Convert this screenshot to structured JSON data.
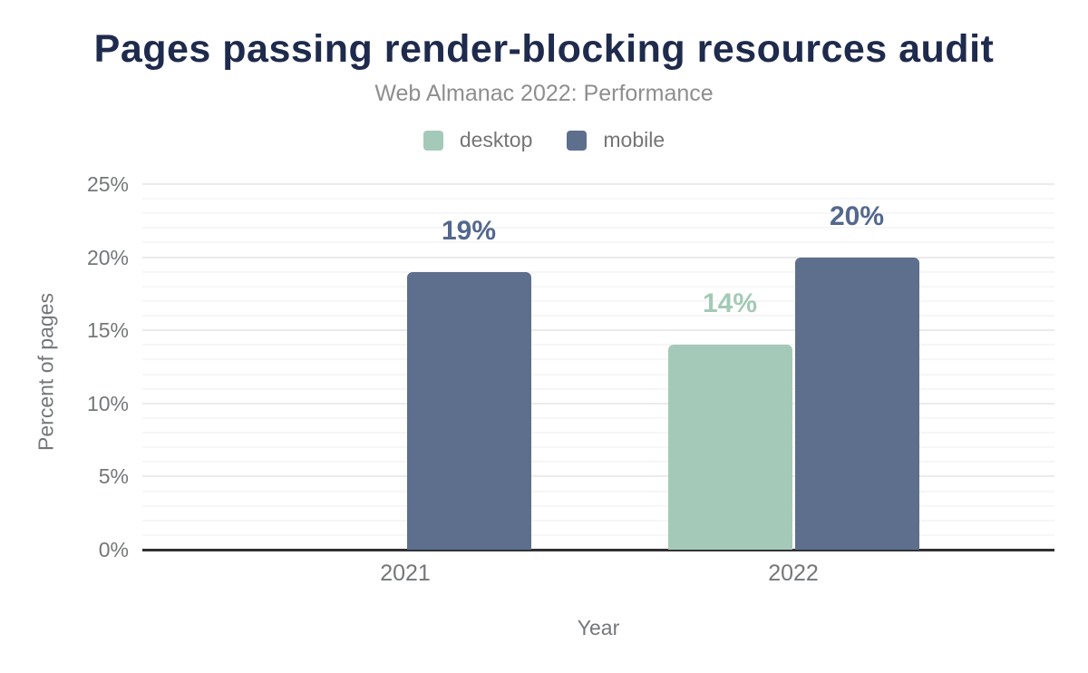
{
  "header": {
    "title": "Pages passing render-blocking resources audit",
    "subtitle": "Web Almanac 2022: Performance"
  },
  "legend": {
    "items": [
      {
        "name": "desktop",
        "label": "desktop",
        "color": "#a5c9b8"
      },
      {
        "name": "mobile",
        "label": "mobile",
        "color": "#5d6f8d"
      }
    ]
  },
  "chart_data": {
    "type": "bar",
    "title": "Pages passing render-blocking resources audit",
    "subtitle": "Web Almanac 2022: Performance",
    "categories": [
      "2021",
      "2022"
    ],
    "series": [
      {
        "name": "desktop",
        "color": "#a5c9b8",
        "label_color": "#a3cab7",
        "values": [
          null,
          14
        ],
        "value_labels": [
          "",
          "14%"
        ]
      },
      {
        "name": "mobile",
        "color": "#5d6f8d",
        "label_color": "#54688e",
        "values": [
          19,
          20
        ],
        "value_labels": [
          "19%",
          "20%"
        ]
      }
    ],
    "xlabel": "Year",
    "ylabel": "Percent of pages",
    "ylim": [
      0,
      25
    ],
    "ytick_step_major": 5,
    "ytick_step_minor": 1,
    "ytick_labels": [
      "0%",
      "5%",
      "10%",
      "15%",
      "20%",
      "25%"
    ],
    "grid": true,
    "legend_position": "top"
  },
  "colors": {
    "title": "#1f2b4c",
    "subtitle_text": "#8e8e8e",
    "axis_text": "#747779",
    "axis_line": "#313135",
    "gridline_major": "#ebebeb",
    "gridline_minor": "#f6f6f6",
    "desktop": "#a5c9b8",
    "mobile": "#5d6f8d"
  }
}
